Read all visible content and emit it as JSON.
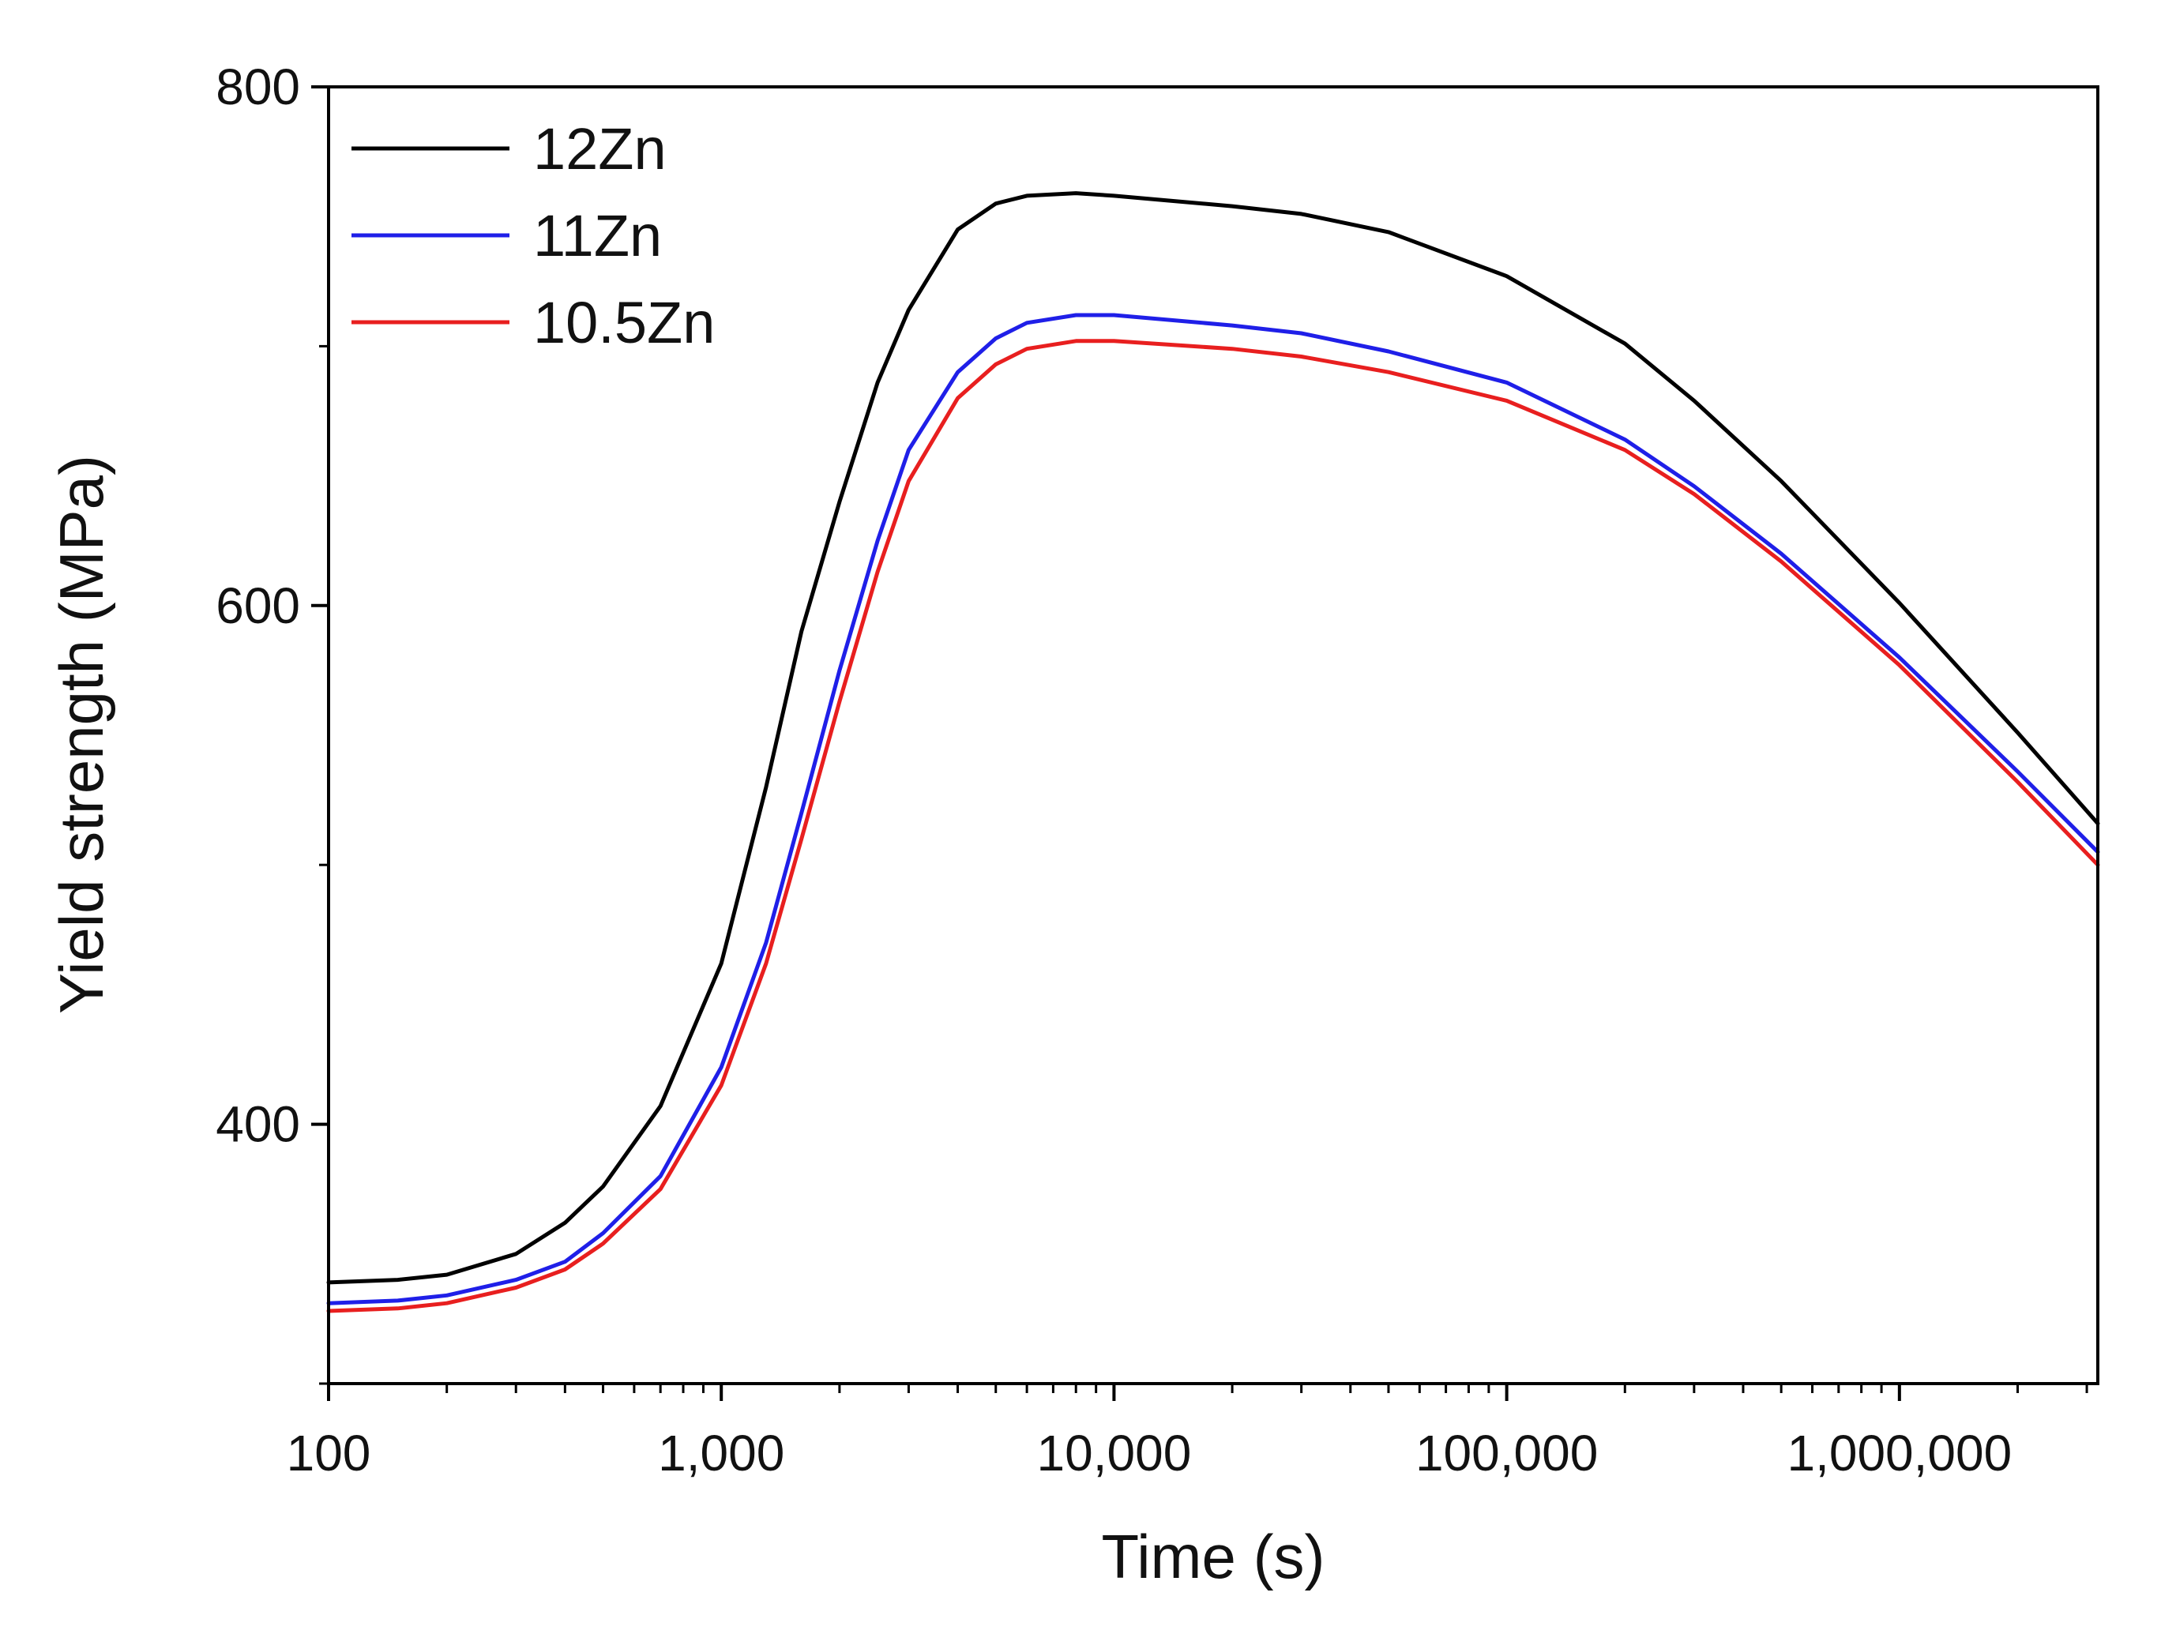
{
  "chart_data": {
    "type": "line",
    "title": "",
    "xlabel": "Time (s)",
    "ylabel": "Yield strength (MPa)",
    "xscale": "log",
    "xlim": [
      100,
      3200000
    ],
    "ylim": [
      300,
      800
    ],
    "x_ticks": [
      {
        "value": 100,
        "label": "100"
      },
      {
        "value": 1000,
        "label": "1,000"
      },
      {
        "value": 10000,
        "label": "10,000"
      },
      {
        "value": 100000,
        "label": "100,000"
      },
      {
        "value": 1000000,
        "label": "1,000,000"
      }
    ],
    "y_ticks": [
      {
        "value": 400,
        "label": "400"
      },
      {
        "value": 600,
        "label": "600"
      },
      {
        "value": 800,
        "label": "800"
      }
    ],
    "y_minor_ticks": [
      300,
      500,
      700
    ],
    "grid": false,
    "legend_position": "top-left",
    "series": [
      {
        "name": "12Zn",
        "color": "#000000",
        "points": [
          [
            100,
            339
          ],
          [
            150,
            340
          ],
          [
            200,
            342
          ],
          [
            300,
            350
          ],
          [
            400,
            362
          ],
          [
            500,
            376
          ],
          [
            700,
            407
          ],
          [
            1000,
            462
          ],
          [
            1300,
            530
          ],
          [
            1600,
            590
          ],
          [
            2000,
            640
          ],
          [
            2500,
            686
          ],
          [
            3000,
            714
          ],
          [
            4000,
            745
          ],
          [
            5000,
            755
          ],
          [
            6000,
            758
          ],
          [
            8000,
            759
          ],
          [
            10000,
            758
          ],
          [
            20000,
            754
          ],
          [
            30000,
            751
          ],
          [
            50000,
            744
          ],
          [
            100000,
            727
          ],
          [
            200000,
            701
          ],
          [
            300000,
            679
          ],
          [
            500000,
            648
          ],
          [
            1000000,
            601
          ],
          [
            2000000,
            551
          ],
          [
            3200000,
            516
          ]
        ]
      },
      {
        "name": "11Zn",
        "color": "#1f1fe8",
        "points": [
          [
            100,
            331
          ],
          [
            150,
            332
          ],
          [
            200,
            334
          ],
          [
            300,
            340
          ],
          [
            400,
            347
          ],
          [
            500,
            358
          ],
          [
            700,
            380
          ],
          [
            1000,
            422
          ],
          [
            1300,
            470
          ],
          [
            1600,
            520
          ],
          [
            2000,
            575
          ],
          [
            2500,
            625
          ],
          [
            3000,
            660
          ],
          [
            4000,
            690
          ],
          [
            5000,
            703
          ],
          [
            6000,
            709
          ],
          [
            8000,
            712
          ],
          [
            10000,
            712
          ],
          [
            20000,
            708
          ],
          [
            30000,
            705
          ],
          [
            50000,
            698
          ],
          [
            100000,
            686
          ],
          [
            200000,
            664
          ],
          [
            300000,
            646
          ],
          [
            500000,
            620
          ],
          [
            1000000,
            580
          ],
          [
            2000000,
            536
          ],
          [
            3200000,
            505
          ]
        ]
      },
      {
        "name": "10.5Zn",
        "color": "#e81f1f",
        "points": [
          [
            100,
            328
          ],
          [
            150,
            329
          ],
          [
            200,
            331
          ],
          [
            300,
            337
          ],
          [
            400,
            344
          ],
          [
            500,
            354
          ],
          [
            700,
            375
          ],
          [
            1000,
            415
          ],
          [
            1300,
            462
          ],
          [
            1600,
            510
          ],
          [
            2000,
            563
          ],
          [
            2500,
            613
          ],
          [
            3000,
            648
          ],
          [
            4000,
            680
          ],
          [
            5000,
            693
          ],
          [
            6000,
            699
          ],
          [
            8000,
            702
          ],
          [
            10000,
            702
          ],
          [
            20000,
            699
          ],
          [
            30000,
            696
          ],
          [
            50000,
            690
          ],
          [
            100000,
            679
          ],
          [
            200000,
            660
          ],
          [
            300000,
            643
          ],
          [
            500000,
            617
          ],
          [
            1000000,
            577
          ],
          [
            2000000,
            532
          ],
          [
            3200000,
            500
          ]
        ]
      }
    ]
  }
}
